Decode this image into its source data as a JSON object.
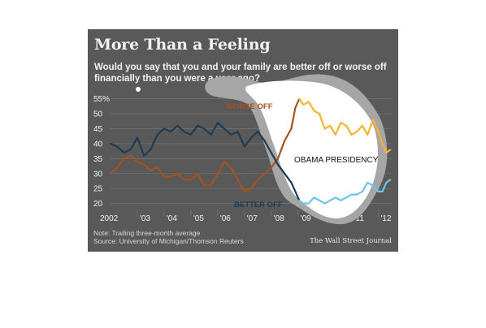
{
  "header": {
    "title": "More Than a Feeling",
    "subtitle": "Would you say that you and your family are better off or worse off financially than you were a year ago?"
  },
  "footer": {
    "note": "Note: Trailing three-month average",
    "source": "Source: University of Michigan/Thomson Reuters",
    "credit": "The Wall Street Journal"
  },
  "colors": {
    "panel": "#595959",
    "worse_off": "#a5521f",
    "worse_off_obama": "#f3b52d",
    "better_off": "#1f3c52",
    "better_off_obama": "#6cc4ea",
    "highlight": "#ffffff"
  },
  "chart_data": {
    "type": "line",
    "y_tick_labels": [
      "55%",
      "50",
      "45",
      "40",
      "35",
      "30",
      "25",
      "20"
    ],
    "y_ticks": [
      55,
      50,
      45,
      40,
      35,
      30,
      25,
      20
    ],
    "x_tick_labels": [
      "2002",
      "'03",
      "'04",
      "'05",
      "'06",
      "'07",
      "'08",
      "'09",
      "'10",
      "'11",
      "'12"
    ],
    "x_ticks": [
      2002,
      2003,
      2004,
      2005,
      2006,
      2007,
      2008,
      2009,
      2010,
      2011,
      2012
    ],
    "xlim": [
      2002,
      2012.5
    ],
    "ylim": [
      18,
      56
    ],
    "grid": true,
    "obama_start": 2009.05,
    "annotations": {
      "worse_label": "WORSE OFF",
      "better_label": "BETTER OFF",
      "highlight_label": "OBAMA PRESIDENCY"
    },
    "series": [
      {
        "name": "WORSE OFF",
        "x": [
          2002,
          2002.25,
          2002.5,
          2002.75,
          2003,
          2003.25,
          2003.5,
          2003.75,
          2004,
          2004.25,
          2004.5,
          2004.75,
          2005,
          2005.25,
          2005.5,
          2005.75,
          2006,
          2006.25,
          2006.5,
          2006.75,
          2007,
          2007.25,
          2007.5,
          2007.75,
          2008,
          2008.25,
          2008.5,
          2008.75,
          2008.9,
          2009.05,
          2009.2,
          2009.4,
          2009.6,
          2009.8,
          2010,
          2010.2,
          2010.4,
          2010.6,
          2010.8,
          2011,
          2011.2,
          2011.4,
          2011.6,
          2011.8,
          2012,
          2012.15,
          2012.3,
          2012.45
        ],
        "y": [
          30,
          32,
          35,
          36,
          34,
          33,
          31,
          32,
          29,
          29,
          30,
          28,
          28,
          30,
          26,
          26,
          30,
          34,
          32,
          28,
          24,
          25,
          28,
          30,
          32,
          35,
          41,
          45,
          52,
          55,
          53,
          54,
          51,
          50,
          45,
          46,
          43,
          47,
          46,
          43,
          44,
          46,
          43,
          48,
          44,
          40,
          37,
          38
        ]
      },
      {
        "name": "BETTER OFF",
        "x": [
          2002,
          2002.25,
          2002.5,
          2002.75,
          2003,
          2003.25,
          2003.5,
          2003.75,
          2004,
          2004.25,
          2004.5,
          2004.75,
          2005,
          2005.25,
          2005.5,
          2005.75,
          2006,
          2006.25,
          2006.5,
          2006.75,
          2007,
          2007.25,
          2007.5,
          2007.75,
          2008,
          2008.25,
          2008.5,
          2008.75,
          2008.9,
          2009.05,
          2009.2,
          2009.4,
          2009.6,
          2009.8,
          2010,
          2010.2,
          2010.4,
          2010.6,
          2010.8,
          2011,
          2011.2,
          2011.4,
          2011.6,
          2011.8,
          2012,
          2012.15,
          2012.3,
          2012.45
        ],
        "y": [
          40,
          39,
          37,
          38,
          42,
          36,
          38,
          43,
          45,
          44,
          46,
          44,
          43,
          46,
          45,
          43,
          47,
          45,
          43,
          44,
          39,
          42,
          44,
          41,
          37,
          33,
          30,
          27,
          24,
          21,
          20,
          20,
          22,
          21,
          20,
          21,
          22,
          21,
          22,
          23,
          23,
          24,
          27,
          26,
          24,
          24,
          27,
          28
        ]
      }
    ]
  }
}
